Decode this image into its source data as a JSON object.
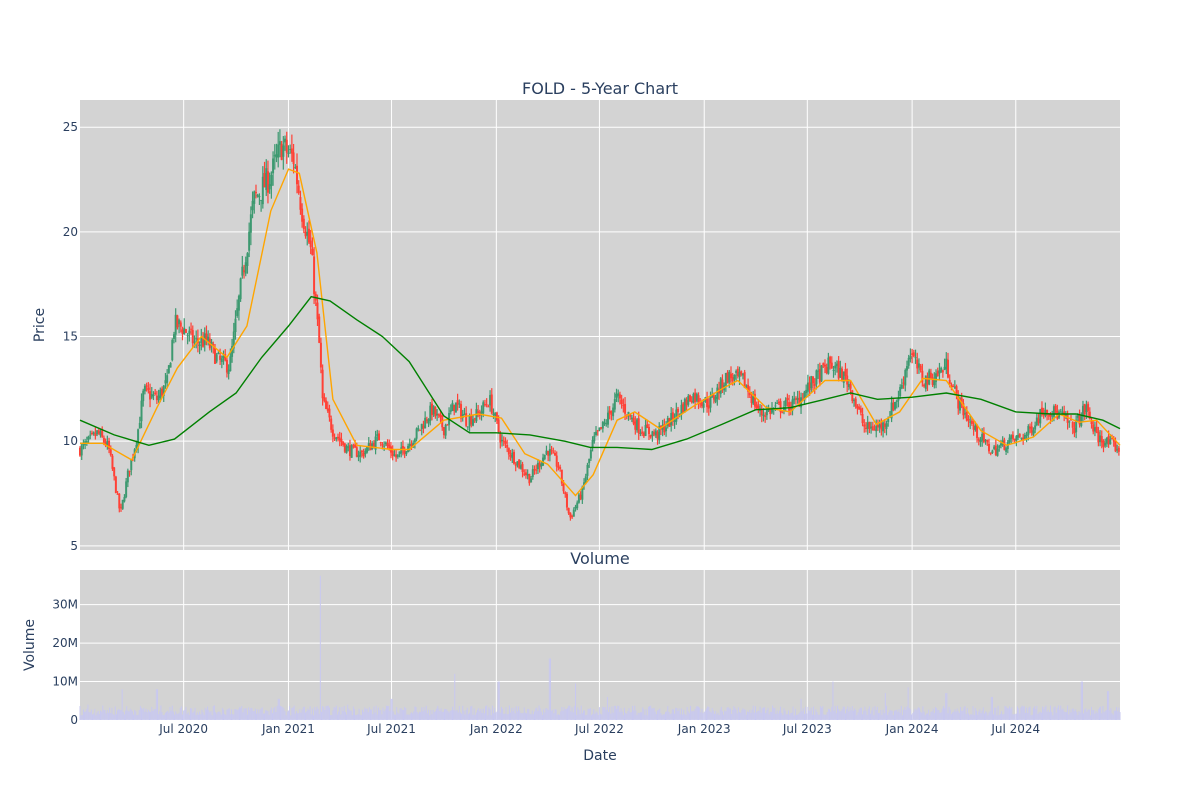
{
  "chart_data": [
    {
      "type": "candlestick",
      "title": "FOLD - 5-Year Chart",
      "ylabel": "Price",
      "xlabel": "",
      "ylim": [
        4.8,
        26.3
      ],
      "x_range": [
        "2020-01-01",
        "2024-12-31"
      ],
      "yticks": [
        5,
        10,
        15,
        20,
        25
      ],
      "grid": true,
      "legend": "none",
      "colors": {
        "increasing": "#3D9970",
        "decreasing": "#FF4136",
        "ma_short": "#FFA500",
        "ma_long": "#008000",
        "plot_bg": "#D3D3D3"
      },
      "close_approx": [
        {
          "date": "2020-01-02",
          "close": 9.6
        },
        {
          "date": "2020-02-01",
          "close": 10.4
        },
        {
          "date": "2020-02-20",
          "close": 9.7
        },
        {
          "date": "2020-03-12",
          "close": 6.5
        },
        {
          "date": "2020-03-25",
          "close": 8.4
        },
        {
          "date": "2020-04-10",
          "close": 10.2
        },
        {
          "date": "2020-04-22",
          "close": 12.4
        },
        {
          "date": "2020-05-15",
          "close": 12.0
        },
        {
          "date": "2020-06-02",
          "close": 12.8
        },
        {
          "date": "2020-06-15",
          "close": 15.6
        },
        {
          "date": "2020-07-01",
          "close": 15.4
        },
        {
          "date": "2020-07-20",
          "close": 14.7
        },
        {
          "date": "2020-08-10",
          "close": 14.8
        },
        {
          "date": "2020-09-01",
          "close": 13.8
        },
        {
          "date": "2020-09-20",
          "close": 13.6
        },
        {
          "date": "2020-10-10",
          "close": 17.5
        },
        {
          "date": "2020-11-01",
          "close": 21.5
        },
        {
          "date": "2020-12-01",
          "close": 22.7
        },
        {
          "date": "2020-12-20",
          "close": 24.1
        },
        {
          "date": "2021-01-10",
          "close": 23.5
        },
        {
          "date": "2021-01-25",
          "close": 21.0
        },
        {
          "date": "2021-02-10",
          "close": 19.0
        },
        {
          "date": "2021-02-26",
          "close": 14.0
        },
        {
          "date": "2021-03-01",
          "close": 12.0
        },
        {
          "date": "2021-03-20",
          "close": 10.5
        },
        {
          "date": "2021-04-15",
          "close": 9.6
        },
        {
          "date": "2021-05-10",
          "close": 9.4
        },
        {
          "date": "2021-06-10",
          "close": 10.2
        },
        {
          "date": "2021-07-10",
          "close": 9.2
        },
        {
          "date": "2021-08-10",
          "close": 10.2
        },
        {
          "date": "2021-09-10",
          "close": 11.5
        },
        {
          "date": "2021-10-01",
          "close": 10.6
        },
        {
          "date": "2021-10-20",
          "close": 11.8
        },
        {
          "date": "2021-11-10",
          "close": 11.0
        },
        {
          "date": "2021-12-01",
          "close": 11.3
        },
        {
          "date": "2021-12-20",
          "close": 12.0
        },
        {
          "date": "2022-01-10",
          "close": 10.0
        },
        {
          "date": "2022-02-01",
          "close": 9.2
        },
        {
          "date": "2022-03-01",
          "close": 8.2
        },
        {
          "date": "2022-04-01",
          "close": 9.6
        },
        {
          "date": "2022-04-20",
          "close": 8.8
        },
        {
          "date": "2022-05-10",
          "close": 6.3
        },
        {
          "date": "2022-06-01",
          "close": 7.6
        },
        {
          "date": "2022-06-20",
          "close": 10.0
        },
        {
          "date": "2022-07-10",
          "close": 10.8
        },
        {
          "date": "2022-08-01",
          "close": 12.1
        },
        {
          "date": "2022-08-20",
          "close": 11.3
        },
        {
          "date": "2022-09-10",
          "close": 10.6
        },
        {
          "date": "2022-10-10",
          "close": 10.3
        },
        {
          "date": "2022-11-10",
          "close": 11.2
        },
        {
          "date": "2022-12-10",
          "close": 12.2
        },
        {
          "date": "2023-01-10",
          "close": 11.8
        },
        {
          "date": "2023-02-10",
          "close": 13.1
        },
        {
          "date": "2023-03-10",
          "close": 12.9
        },
        {
          "date": "2023-04-10",
          "close": 11.3
        },
        {
          "date": "2023-05-10",
          "close": 11.6
        },
        {
          "date": "2023-06-10",
          "close": 11.8
        },
        {
          "date": "2023-07-10",
          "close": 12.8
        },
        {
          "date": "2023-08-10",
          "close": 13.7
        },
        {
          "date": "2023-09-10",
          "close": 12.9
        },
        {
          "date": "2023-10-10",
          "close": 10.6
        },
        {
          "date": "2023-11-10",
          "close": 10.7
        },
        {
          "date": "2023-12-10",
          "close": 12.3
        },
        {
          "date": "2023-12-28",
          "close": 14.3
        },
        {
          "date": "2024-01-20",
          "close": 12.9
        },
        {
          "date": "2024-02-10",
          "close": 13.1
        },
        {
          "date": "2024-03-01",
          "close": 13.6
        },
        {
          "date": "2024-03-20",
          "close": 12.0
        },
        {
          "date": "2024-04-20",
          "close": 10.5
        },
        {
          "date": "2024-05-20",
          "close": 9.5
        },
        {
          "date": "2024-06-20",
          "close": 10.0
        },
        {
          "date": "2024-07-20",
          "close": 10.3
        },
        {
          "date": "2024-08-20",
          "close": 11.6
        },
        {
          "date": "2024-09-20",
          "close": 11.2
        },
        {
          "date": "2024-10-10",
          "close": 10.6
        },
        {
          "date": "2024-11-01",
          "close": 11.6
        },
        {
          "date": "2024-11-20",
          "close": 10.2
        },
        {
          "date": "2024-12-31",
          "close": 9.6
        }
      ],
      "ma_short_approx": [
        {
          "date": "2020-01-01",
          "value": 9.9
        },
        {
          "date": "2020-02-10",
          "value": 9.9
        },
        {
          "date": "2020-04-01",
          "value": 9.1
        },
        {
          "date": "2020-05-15",
          "value": 11.6
        },
        {
          "date": "2020-06-20",
          "value": 13.5
        },
        {
          "date": "2020-08-01",
          "value": 15.0
        },
        {
          "date": "2020-09-15",
          "value": 14.0
        },
        {
          "date": "2020-10-20",
          "value": 15.5
        },
        {
          "date": "2020-12-01",
          "value": 21.0
        },
        {
          "date": "2021-01-01",
          "value": 23.0
        },
        {
          "date": "2021-01-20",
          "value": 22.8
        },
        {
          "date": "2021-02-20",
          "value": 19.0
        },
        {
          "date": "2021-03-20",
          "value": 12.0
        },
        {
          "date": "2021-05-01",
          "value": 9.8
        },
        {
          "date": "2021-07-01",
          "value": 9.6
        },
        {
          "date": "2021-08-01",
          "value": 9.6
        },
        {
          "date": "2021-10-01",
          "value": 11.0
        },
        {
          "date": "2021-12-01",
          "value": 11.3
        },
        {
          "date": "2022-01-10",
          "value": 11.1
        },
        {
          "date": "2022-02-20",
          "value": 9.4
        },
        {
          "date": "2022-04-01",
          "value": 8.9
        },
        {
          "date": "2022-05-20",
          "value": 7.4
        },
        {
          "date": "2022-06-20",
          "value": 8.4
        },
        {
          "date": "2022-08-01",
          "value": 11.0
        },
        {
          "date": "2022-09-01",
          "value": 11.4
        },
        {
          "date": "2022-10-15",
          "value": 10.6
        },
        {
          "date": "2022-12-15",
          "value": 11.7
        },
        {
          "date": "2023-02-01",
          "value": 12.5
        },
        {
          "date": "2023-03-01",
          "value": 12.9
        },
        {
          "date": "2023-04-20",
          "value": 11.6
        },
        {
          "date": "2023-06-01",
          "value": 11.4
        },
        {
          "date": "2023-08-01",
          "value": 12.9
        },
        {
          "date": "2023-09-15",
          "value": 12.9
        },
        {
          "date": "2023-10-30",
          "value": 10.8
        },
        {
          "date": "2023-12-10",
          "value": 11.4
        },
        {
          "date": "2024-01-20",
          "value": 13.0
        },
        {
          "date": "2024-03-01",
          "value": 12.9
        },
        {
          "date": "2024-05-01",
          "value": 10.5
        },
        {
          "date": "2024-06-15",
          "value": 9.8
        },
        {
          "date": "2024-08-01",
          "value": 10.2
        },
        {
          "date": "2024-09-15",
          "value": 11.3
        },
        {
          "date": "2024-10-20",
          "value": 10.9
        },
        {
          "date": "2024-11-20",
          "value": 11.0
        },
        {
          "date": "2024-12-31",
          "value": 9.8
        }
      ],
      "ma_long_approx": [
        {
          "date": "2020-01-01",
          "value": 11.0
        },
        {
          "date": "2020-03-01",
          "value": 10.3
        },
        {
          "date": "2020-05-01",
          "value": 9.8
        },
        {
          "date": "2020-06-15",
          "value": 10.1
        },
        {
          "date": "2020-08-15",
          "value": 11.4
        },
        {
          "date": "2020-10-01",
          "value": 12.3
        },
        {
          "date": "2020-11-15",
          "value": 14.0
        },
        {
          "date": "2021-01-01",
          "value": 15.5
        },
        {
          "date": "2021-02-10",
          "value": 16.9
        },
        {
          "date": "2021-03-15",
          "value": 16.7
        },
        {
          "date": "2021-05-01",
          "value": 15.8
        },
        {
          "date": "2021-06-15",
          "value": 15.0
        },
        {
          "date": "2021-08-01",
          "value": 13.8
        },
        {
          "date": "2021-10-01",
          "value": 11.2
        },
        {
          "date": "2021-11-15",
          "value": 10.4
        },
        {
          "date": "2022-01-01",
          "value": 10.4
        },
        {
          "date": "2022-03-01",
          "value": 10.3
        },
        {
          "date": "2022-05-01",
          "value": 10.0
        },
        {
          "date": "2022-06-15",
          "value": 9.7
        },
        {
          "date": "2022-08-01",
          "value": 9.7
        },
        {
          "date": "2022-10-01",
          "value": 9.6
        },
        {
          "date": "2022-12-01",
          "value": 10.1
        },
        {
          "date": "2023-02-01",
          "value": 10.8
        },
        {
          "date": "2023-04-01",
          "value": 11.5
        },
        {
          "date": "2023-06-01",
          "value": 11.6
        },
        {
          "date": "2023-08-01",
          "value": 12.0
        },
        {
          "date": "2023-09-15",
          "value": 12.3
        },
        {
          "date": "2023-11-01",
          "value": 12.0
        },
        {
          "date": "2024-01-01",
          "value": 12.1
        },
        {
          "date": "2024-03-01",
          "value": 12.3
        },
        {
          "date": "2024-05-01",
          "value": 12.0
        },
        {
          "date": "2024-07-01",
          "value": 11.4
        },
        {
          "date": "2024-09-01",
          "value": 11.3
        },
        {
          "date": "2024-10-15",
          "value": 11.3
        },
        {
          "date": "2024-12-01",
          "value": 11.0
        },
        {
          "date": "2024-12-31",
          "value": 10.6
        }
      ]
    },
    {
      "type": "bar",
      "title": "Volume",
      "ylabel": "Volume",
      "xlabel": "Date",
      "ylim": [
        0,
        39000000
      ],
      "yticks": [
        0,
        10000000,
        20000000,
        30000000
      ],
      "ytick_labels": [
        "0",
        "10M",
        "20M",
        "30M"
      ],
      "xticks": [
        {
          "date": "2020-07-01",
          "label": "Jul 2020"
        },
        {
          "date": "2021-01-01",
          "label": "Jan 2021"
        },
        {
          "date": "2021-07-01",
          "label": "Jul 2021"
        },
        {
          "date": "2022-01-01",
          "label": "Jan 2022"
        },
        {
          "date": "2022-07-01",
          "label": "Jul 2022"
        },
        {
          "date": "2023-01-01",
          "label": "Jan 2023"
        },
        {
          "date": "2023-07-01",
          "label": "Jul 2023"
        },
        {
          "date": "2024-01-01",
          "label": "Jan 2024"
        },
        {
          "date": "2024-07-01",
          "label": "Jul 2024"
        }
      ],
      "grid": true,
      "colors": {
        "bar": "#C8C8F0",
        "plot_bg": "#D3D3D3"
      },
      "volume_approx": [
        {
          "date": "2020-01-15",
          "value": 4000000
        },
        {
          "date": "2020-03-15",
          "value": 8000000
        },
        {
          "date": "2020-05-15",
          "value": 8000000
        },
        {
          "date": "2020-07-15",
          "value": 3000000
        },
        {
          "date": "2020-10-15",
          "value": 3000000
        },
        {
          "date": "2020-12-15",
          "value": 5500000
        },
        {
          "date": "2021-02-26",
          "value": 37500000
        },
        {
          "date": "2021-04-15",
          "value": 4000000
        },
        {
          "date": "2021-07-01",
          "value": 5500000
        },
        {
          "date": "2021-10-20",
          "value": 12000000
        },
        {
          "date": "2022-01-05",
          "value": 10000000
        },
        {
          "date": "2022-04-05",
          "value": 16000000
        },
        {
          "date": "2022-05-20",
          "value": 9500000
        },
        {
          "date": "2022-07-15",
          "value": 6000000
        },
        {
          "date": "2022-10-15",
          "value": 3000000
        },
        {
          "date": "2023-04-15",
          "value": 3000000
        },
        {
          "date": "2023-06-20",
          "value": 5500000
        },
        {
          "date": "2023-08-15",
          "value": 10000000
        },
        {
          "date": "2023-11-15",
          "value": 7000000
        },
        {
          "date": "2023-12-25",
          "value": 8500000
        },
        {
          "date": "2024-03-01",
          "value": 7000000
        },
        {
          "date": "2024-05-20",
          "value": 6000000
        },
        {
          "date": "2024-10-25",
          "value": 10000000
        },
        {
          "date": "2024-12-10",
          "value": 7500000
        }
      ]
    }
  ]
}
